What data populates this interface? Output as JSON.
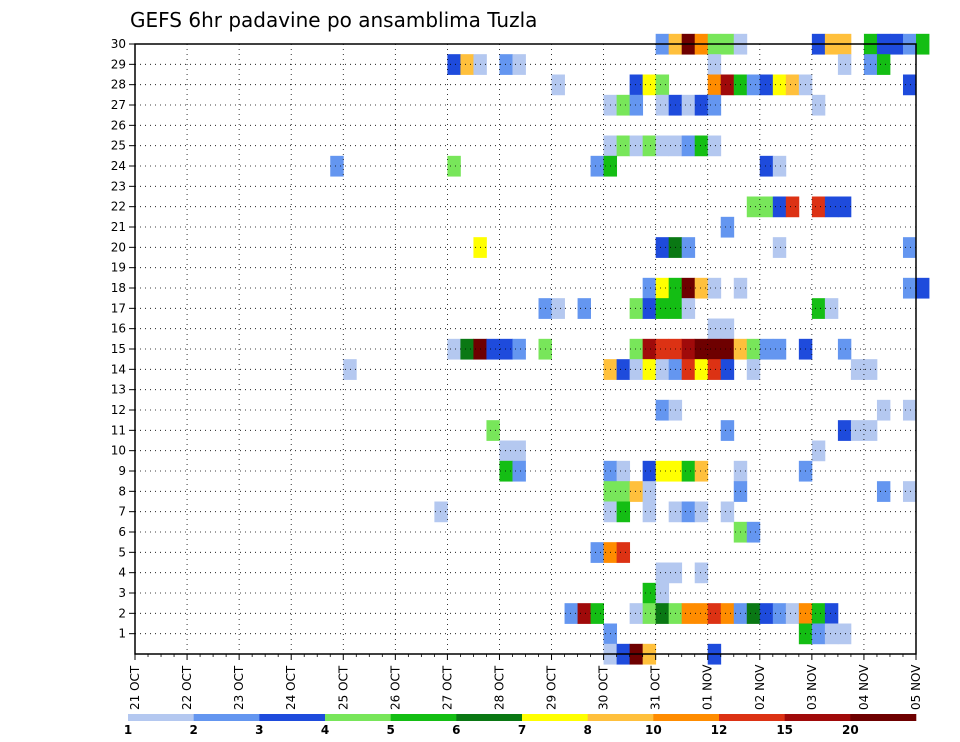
{
  "chart_data": {
    "type": "heatmap",
    "title": "GEFS 6hr padavine po ansamblima Tuzla",
    "xlabel": "",
    "ylabel": "",
    "x_ticks": [
      "21 OCT",
      "22 OCT",
      "23 OCT",
      "24 OCT",
      "25 OCT",
      "26 OCT",
      "27 OCT",
      "28 OCT",
      "29 OCT",
      "30 OCT",
      "31 OCT",
      "01 NOV",
      "02 NOV",
      "03 NOV",
      "04 NOV",
      "05 NOV"
    ],
    "x_range": [
      "21 OCT 00",
      "05 NOV 00"
    ],
    "y_ticks": [
      1,
      2,
      3,
      4,
      5,
      6,
      7,
      8,
      9,
      10,
      11,
      12,
      13,
      14,
      15,
      16,
      17,
      18,
      19,
      20,
      21,
      22,
      23,
      24,
      25,
      26,
      27,
      28,
      29,
      30
    ],
    "y_range": [
      0,
      30
    ],
    "grid": true,
    "legend_position": "bottom",
    "legend_labels": [
      "1",
      "2",
      "3",
      "4",
      "5",
      "6",
      "7",
      "8",
      "10",
      "12",
      "15",
      "20"
    ],
    "colors": [
      "#b4c8f0",
      "#6496f0",
      "#1e4bdc",
      "#78e65a",
      "#14be14",
      "#0a7814",
      "#ffff00",
      "#ffc03c",
      "#ff8c00",
      "#dc3214",
      "#a00a0a",
      "#6e0000"
    ],
    "cells": [
      {
        "member": 30,
        "time": "31 OCT 00",
        "cat": 1
      },
      {
        "member": 30,
        "time": "31 OCT 06",
        "cat": 7
      },
      {
        "member": 30,
        "time": "31 OCT 12",
        "cat": 11
      },
      {
        "member": 30,
        "time": "31 OCT 18",
        "cat": 8
      },
      {
        "member": 30,
        "time": "01 NOV 00",
        "cat": 3
      },
      {
        "member": 30,
        "time": "01 NOV 06",
        "cat": 3
      },
      {
        "member": 30,
        "time": "01 NOV 12",
        "cat": 0
      },
      {
        "member": 30,
        "time": "03 NOV 00",
        "cat": 2
      },
      {
        "member": 30,
        "time": "03 NOV 06",
        "cat": 7
      },
      {
        "member": 30,
        "time": "03 NOV 12",
        "cat": 7
      },
      {
        "member": 30,
        "time": "04 NOV 00",
        "cat": 4
      },
      {
        "member": 30,
        "time": "04 NOV 06",
        "cat": 2
      },
      {
        "member": 30,
        "time": "04 NOV 12",
        "cat": 2
      },
      {
        "member": 30,
        "time": "04 NOV 18",
        "cat": 1
      },
      {
        "member": 30,
        "time": "05 NOV 00",
        "cat": 4
      },
      {
        "member": 29,
        "time": "27 OCT 00",
        "cat": 2
      },
      {
        "member": 29,
        "time": "27 OCT 06",
        "cat": 7
      },
      {
        "member": 29,
        "time": "27 OCT 12",
        "cat": 0
      },
      {
        "member": 29,
        "time": "28 OCT 00",
        "cat": 1
      },
      {
        "member": 29,
        "time": "28 OCT 06",
        "cat": 0
      },
      {
        "member": 29,
        "time": "01 NOV 00",
        "cat": 0
      },
      {
        "member": 29,
        "time": "03 NOV 12",
        "cat": 0
      },
      {
        "member": 29,
        "time": "04 NOV 00",
        "cat": 1
      },
      {
        "member": 29,
        "time": "04 NOV 06",
        "cat": 4
      },
      {
        "member": 28,
        "time": "29 OCT 00",
        "cat": 0
      },
      {
        "member": 28,
        "time": "30 OCT 12",
        "cat": 2
      },
      {
        "member": 28,
        "time": "30 OCT 18",
        "cat": 6
      },
      {
        "member": 28,
        "time": "31 OCT 00",
        "cat": 3
      },
      {
        "member": 28,
        "time": "01 NOV 00",
        "cat": 8
      },
      {
        "member": 28,
        "time": "01 NOV 06",
        "cat": 10
      },
      {
        "member": 28,
        "time": "01 NOV 12",
        "cat": 4
      },
      {
        "member": 28,
        "time": "01 NOV 18",
        "cat": 1
      },
      {
        "member": 28,
        "time": "02 NOV 00",
        "cat": 2
      },
      {
        "member": 28,
        "time": "02 NOV 06",
        "cat": 6
      },
      {
        "member": 28,
        "time": "02 NOV 12",
        "cat": 7
      },
      {
        "member": 28,
        "time": "02 NOV 18",
        "cat": 0
      },
      {
        "member": 28,
        "time": "04 NOV 18",
        "cat": 2
      },
      {
        "member": 27,
        "time": "30 OCT 00",
        "cat": 0
      },
      {
        "member": 27,
        "time": "30 OCT 06",
        "cat": 3
      },
      {
        "member": 27,
        "time": "30 OCT 12",
        "cat": 1
      },
      {
        "member": 27,
        "time": "31 OCT 00",
        "cat": 0
      },
      {
        "member": 27,
        "time": "31 OCT 06",
        "cat": 2
      },
      {
        "member": 27,
        "time": "31 OCT 12",
        "cat": 0
      },
      {
        "member": 27,
        "time": "31 OCT 18",
        "cat": 2
      },
      {
        "member": 27,
        "time": "01 NOV 00",
        "cat": 1
      },
      {
        "member": 27,
        "time": "03 NOV 00",
        "cat": 0
      },
      {
        "member": 25,
        "time": "30 OCT 00",
        "cat": 0
      },
      {
        "member": 25,
        "time": "30 OCT 06",
        "cat": 3
      },
      {
        "member": 25,
        "time": "30 OCT 12",
        "cat": 0
      },
      {
        "member": 25,
        "time": "30 OCT 18",
        "cat": 3
      },
      {
        "member": 25,
        "time": "31 OCT 00",
        "cat": 0
      },
      {
        "member": 25,
        "time": "31 OCT 06",
        "cat": 0
      },
      {
        "member": 25,
        "time": "31 OCT 12",
        "cat": 1
      },
      {
        "member": 25,
        "time": "31 OCT 18",
        "cat": 4
      },
      {
        "member": 25,
        "time": "01 NOV 00",
        "cat": 0
      },
      {
        "member": 24,
        "time": "24 OCT 18",
        "cat": 1
      },
      {
        "member": 24,
        "time": "27 OCT 00",
        "cat": 3
      },
      {
        "member": 24,
        "time": "29 OCT 18",
        "cat": 1
      },
      {
        "member": 24,
        "time": "30 OCT 00",
        "cat": 4
      },
      {
        "member": 24,
        "time": "02 NOV 00",
        "cat": 2
      },
      {
        "member": 24,
        "time": "02 NOV 06",
        "cat": 0
      },
      {
        "member": 22,
        "time": "01 NOV 18",
        "cat": 3
      },
      {
        "member": 22,
        "time": "02 NOV 00",
        "cat": 3
      },
      {
        "member": 22,
        "time": "02 NOV 06",
        "cat": 2
      },
      {
        "member": 22,
        "time": "02 NOV 12",
        "cat": 9
      },
      {
        "member": 22,
        "time": "03 NOV 00",
        "cat": 9
      },
      {
        "member": 22,
        "time": "03 NOV 06",
        "cat": 2
      },
      {
        "member": 22,
        "time": "03 NOV 12",
        "cat": 2
      },
      {
        "member": 21,
        "time": "01 NOV 06",
        "cat": 1
      },
      {
        "member": 20,
        "time": "27 OCT 12",
        "cat": 6
      },
      {
        "member": 20,
        "time": "31 OCT 00",
        "cat": 2
      },
      {
        "member": 20,
        "time": "31 OCT 06",
        "cat": 5
      },
      {
        "member": 20,
        "time": "31 OCT 12",
        "cat": 1
      },
      {
        "member": 20,
        "time": "02 NOV 06",
        "cat": 0
      },
      {
        "member": 20,
        "time": "04 NOV 18",
        "cat": 1
      },
      {
        "member": 18,
        "time": "30 OCT 18",
        "cat": 1
      },
      {
        "member": 18,
        "time": "31 OCT 00",
        "cat": 6
      },
      {
        "member": 18,
        "time": "31 OCT 06",
        "cat": 4
      },
      {
        "member": 18,
        "time": "31 OCT 12",
        "cat": 11
      },
      {
        "member": 18,
        "time": "31 OCT 18",
        "cat": 7
      },
      {
        "member": 18,
        "time": "01 NOV 00",
        "cat": 0
      },
      {
        "member": 18,
        "time": "01 NOV 12",
        "cat": 0
      },
      {
        "member": 18,
        "time": "04 NOV 18",
        "cat": 1
      },
      {
        "member": 18,
        "time": "05 NOV 00",
        "cat": 2
      },
      {
        "member": 17,
        "time": "28 OCT 18",
        "cat": 1
      },
      {
        "member": 17,
        "time": "29 OCT 00",
        "cat": 0
      },
      {
        "member": 17,
        "time": "29 OCT 12",
        "cat": 1
      },
      {
        "member": 17,
        "time": "30 OCT 12",
        "cat": 3
      },
      {
        "member": 17,
        "time": "30 OCT 18",
        "cat": 2
      },
      {
        "member": 17,
        "time": "31 OCT 00",
        "cat": 4
      },
      {
        "member": 17,
        "time": "31 OCT 06",
        "cat": 4
      },
      {
        "member": 17,
        "time": "31 OCT 12",
        "cat": 0
      },
      {
        "member": 17,
        "time": "03 NOV 00",
        "cat": 4
      },
      {
        "member": 17,
        "time": "03 NOV 06",
        "cat": 0
      },
      {
        "member": 16,
        "time": "01 NOV 00",
        "cat": 0
      },
      {
        "member": 16,
        "time": "01 NOV 06",
        "cat": 0
      },
      {
        "member": 15,
        "time": "27 OCT 00",
        "cat": 0
      },
      {
        "member": 15,
        "time": "27 OCT 06",
        "cat": 5
      },
      {
        "member": 15,
        "time": "27 OCT 12",
        "cat": 11
      },
      {
        "member": 15,
        "time": "27 OCT 18",
        "cat": 2
      },
      {
        "member": 15,
        "time": "28 OCT 00",
        "cat": 2
      },
      {
        "member": 15,
        "time": "28 OCT 06",
        "cat": 1
      },
      {
        "member": 15,
        "time": "28 OCT 18",
        "cat": 3
      },
      {
        "member": 15,
        "time": "30 OCT 12",
        "cat": 3
      },
      {
        "member": 15,
        "time": "30 OCT 18",
        "cat": 10
      },
      {
        "member": 15,
        "time": "31 OCT 00",
        "cat": 9
      },
      {
        "member": 15,
        "time": "31 OCT 06",
        "cat": 9
      },
      {
        "member": 15,
        "time": "31 OCT 12",
        "cat": 10
      },
      {
        "member": 15,
        "time": "31 OCT 18",
        "cat": 11
      },
      {
        "member": 15,
        "time": "01 NOV 00",
        "cat": 11
      },
      {
        "member": 15,
        "time": "01 NOV 06",
        "cat": 11
      },
      {
        "member": 15,
        "time": "01 NOV 12",
        "cat": 7
      },
      {
        "member": 15,
        "time": "01 NOV 18",
        "cat": 3
      },
      {
        "member": 15,
        "time": "02 NOV 00",
        "cat": 1
      },
      {
        "member": 15,
        "time": "02 NOV 06",
        "cat": 1
      },
      {
        "member": 15,
        "time": "02 NOV 18",
        "cat": 2
      },
      {
        "member": 15,
        "time": "03 NOV 12",
        "cat": 1
      },
      {
        "member": 14,
        "time": "25 OCT 00",
        "cat": 0
      },
      {
        "member": 14,
        "time": "30 OCT 00",
        "cat": 7
      },
      {
        "member": 14,
        "time": "30 OCT 06",
        "cat": 2
      },
      {
        "member": 14,
        "time": "30 OCT 12",
        "cat": 0
      },
      {
        "member": 14,
        "time": "30 OCT 18",
        "cat": 6
      },
      {
        "member": 14,
        "time": "31 OCT 00",
        "cat": 0
      },
      {
        "member": 14,
        "time": "31 OCT 06",
        "cat": 1
      },
      {
        "member": 14,
        "time": "31 OCT 12",
        "cat": 9
      },
      {
        "member": 14,
        "time": "31 OCT 18",
        "cat": 6
      },
      {
        "member": 14,
        "time": "01 NOV 00",
        "cat": 9
      },
      {
        "member": 14,
        "time": "01 NOV 06",
        "cat": 2
      },
      {
        "member": 14,
        "time": "01 NOV 18",
        "cat": 0
      },
      {
        "member": 14,
        "time": "03 NOV 18",
        "cat": 0
      },
      {
        "member": 14,
        "time": "04 NOV 00",
        "cat": 0
      },
      {
        "member": 12,
        "time": "31 OCT 00",
        "cat": 1
      },
      {
        "member": 12,
        "time": "31 OCT 06",
        "cat": 0
      },
      {
        "member": 12,
        "time": "04 NOV 06",
        "cat": 0
      },
      {
        "member": 12,
        "time": "04 NOV 18",
        "cat": 0
      },
      {
        "member": 11,
        "time": "27 OCT 18",
        "cat": 3
      },
      {
        "member": 11,
        "time": "01 NOV 06",
        "cat": 1
      },
      {
        "member": 11,
        "time": "03 NOV 12",
        "cat": 2
      },
      {
        "member": 11,
        "time": "03 NOV 18",
        "cat": 0
      },
      {
        "member": 11,
        "time": "04 NOV 00",
        "cat": 0
      },
      {
        "member": 10,
        "time": "28 OCT 00",
        "cat": 0
      },
      {
        "member": 10,
        "time": "28 OCT 06",
        "cat": 0
      },
      {
        "member": 10,
        "time": "03 NOV 00",
        "cat": 0
      },
      {
        "member": 9,
        "time": "28 OCT 00",
        "cat": 4
      },
      {
        "member": 9,
        "time": "28 OCT 06",
        "cat": 1
      },
      {
        "member": 9,
        "time": "30 OCT 00",
        "cat": 1
      },
      {
        "member": 9,
        "time": "30 OCT 06",
        "cat": 0
      },
      {
        "member": 9,
        "time": "30 OCT 18",
        "cat": 2
      },
      {
        "member": 9,
        "time": "31 OCT 00",
        "cat": 6
      },
      {
        "member": 9,
        "time": "31 OCT 06",
        "cat": 6
      },
      {
        "member": 9,
        "time": "31 OCT 12",
        "cat": 4
      },
      {
        "member": 9,
        "time": "31 OCT 18",
        "cat": 7
      },
      {
        "member": 9,
        "time": "01 NOV 12",
        "cat": 0
      },
      {
        "member": 9,
        "time": "02 NOV 18",
        "cat": 1
      },
      {
        "member": 8,
        "time": "30 OCT 00",
        "cat": 3
      },
      {
        "member": 8,
        "time": "30 OCT 06",
        "cat": 3
      },
      {
        "member": 8,
        "time": "30 OCT 12",
        "cat": 7
      },
      {
        "member": 8,
        "time": "30 OCT 18",
        "cat": 0
      },
      {
        "member": 8,
        "time": "01 NOV 12",
        "cat": 1
      },
      {
        "member": 8,
        "time": "04 NOV 06",
        "cat": 1
      },
      {
        "member": 8,
        "time": "04 NOV 18",
        "cat": 0
      },
      {
        "member": 7,
        "time": "26 OCT 18",
        "cat": 0
      },
      {
        "member": 7,
        "time": "30 OCT 00",
        "cat": 0
      },
      {
        "member": 7,
        "time": "30 OCT 06",
        "cat": 4
      },
      {
        "member": 7,
        "time": "30 OCT 18",
        "cat": 0
      },
      {
        "member": 7,
        "time": "31 OCT 06",
        "cat": 0
      },
      {
        "member": 7,
        "time": "31 OCT 12",
        "cat": 1
      },
      {
        "member": 7,
        "time": "31 OCT 18",
        "cat": 0
      },
      {
        "member": 7,
        "time": "01 NOV 06",
        "cat": 0
      },
      {
        "member": 6,
        "time": "01 NOV 12",
        "cat": 3
      },
      {
        "member": 6,
        "time": "01 NOV 18",
        "cat": 1
      },
      {
        "member": 5,
        "time": "29 OCT 18",
        "cat": 1
      },
      {
        "member": 5,
        "time": "30 OCT 00",
        "cat": 8
      },
      {
        "member": 5,
        "time": "30 OCT 06",
        "cat": 9
      },
      {
        "member": 4,
        "time": "31 OCT 00",
        "cat": 0
      },
      {
        "member": 4,
        "time": "31 OCT 06",
        "cat": 0
      },
      {
        "member": 4,
        "time": "31 OCT 18",
        "cat": 0
      },
      {
        "member": 3,
        "time": "30 OCT 18",
        "cat": 4
      },
      {
        "member": 3,
        "time": "31 OCT 00",
        "cat": 0
      },
      {
        "member": 2,
        "time": "29 OCT 06",
        "cat": 1
      },
      {
        "member": 2,
        "time": "29 OCT 12",
        "cat": 10
      },
      {
        "member": 2,
        "time": "29 OCT 18",
        "cat": 4
      },
      {
        "member": 2,
        "time": "30 OCT 12",
        "cat": 0
      },
      {
        "member": 2,
        "time": "30 OCT 18",
        "cat": 3
      },
      {
        "member": 2,
        "time": "31 OCT 00",
        "cat": 5
      },
      {
        "member": 2,
        "time": "31 OCT 06",
        "cat": 3
      },
      {
        "member": 2,
        "time": "31 OCT 12",
        "cat": 8
      },
      {
        "member": 2,
        "time": "31 OCT 18",
        "cat": 8
      },
      {
        "member": 2,
        "time": "01 NOV 00",
        "cat": 9
      },
      {
        "member": 2,
        "time": "01 NOV 06",
        "cat": 8
      },
      {
        "member": 2,
        "time": "01 NOV 12",
        "cat": 1
      },
      {
        "member": 2,
        "time": "01 NOV 18",
        "cat": 5
      },
      {
        "member": 2,
        "time": "02 NOV 00",
        "cat": 2
      },
      {
        "member": 2,
        "time": "02 NOV 06",
        "cat": 1
      },
      {
        "member": 2,
        "time": "02 NOV 12",
        "cat": 0
      },
      {
        "member": 2,
        "time": "02 NOV 18",
        "cat": 8
      },
      {
        "member": 2,
        "time": "03 NOV 00",
        "cat": 4
      },
      {
        "member": 2,
        "time": "03 NOV 06",
        "cat": 2
      },
      {
        "member": 1,
        "time": "30 OCT 00",
        "cat": 1
      },
      {
        "member": 1,
        "time": "02 NOV 18",
        "cat": 4
      },
      {
        "member": 1,
        "time": "03 NOV 00",
        "cat": 1
      },
      {
        "member": 1,
        "time": "03 NOV 06",
        "cat": 0
      },
      {
        "member": 1,
        "time": "03 NOV 12",
        "cat": 0
      },
      {
        "member": 0,
        "time": "30 OCT 00",
        "cat": 0
      },
      {
        "member": 0,
        "time": "30 OCT 06",
        "cat": 2
      },
      {
        "member": 0,
        "time": "30 OCT 12",
        "cat": 11
      },
      {
        "member": 0,
        "time": "30 OCT 18",
        "cat": 7
      },
      {
        "member": 0,
        "time": "01 NOV 00",
        "cat": 2
      }
    ]
  }
}
